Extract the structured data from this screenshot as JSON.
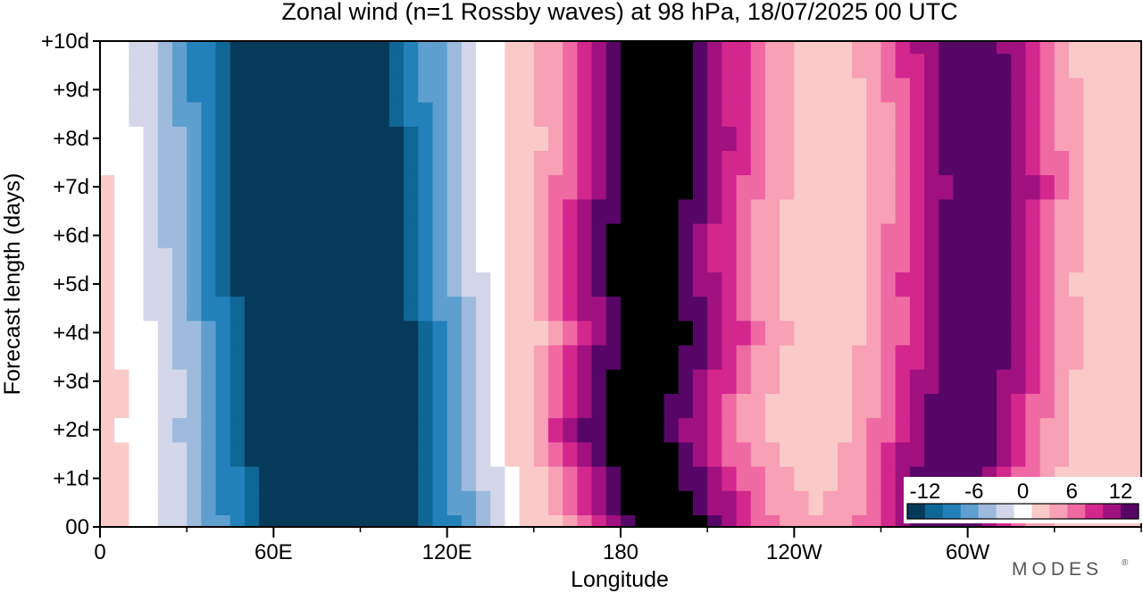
{
  "chart_data": {
    "type": "heatmap",
    "title": "Zonal wind (n=1 Rossby waves) at 98 hPa,  18/07/2025  00 UTC",
    "xlabel": "Longitude",
    "ylabel": "Forecast length (days)",
    "x_ticks": [
      {
        "lon": 0,
        "label": "0"
      },
      {
        "lon": 60,
        "label": "60E"
      },
      {
        "lon": 120,
        "label": "120E"
      },
      {
        "lon": 180,
        "label": "180"
      },
      {
        "lon": 240,
        "label": "120W"
      },
      {
        "lon": 300,
        "label": "60W"
      }
    ],
    "x_minor_step": 30,
    "xlim": [
      0,
      360
    ],
    "y_ticks": [
      {
        "day": 0,
        "label": "00"
      },
      {
        "day": 1,
        "label": "+1d"
      },
      {
        "day": 2,
        "label": "+2d"
      },
      {
        "day": 3,
        "label": "+3d"
      },
      {
        "day": 4,
        "label": "+4d"
      },
      {
        "day": 5,
        "label": "+5d"
      },
      {
        "day": 6,
        "label": "+6d"
      },
      {
        "day": 7,
        "label": "+7d"
      },
      {
        "day": 8,
        "label": "+8d"
      },
      {
        "day": 9,
        "label": "+9d"
      },
      {
        "day": 10,
        "label": "+10d"
      }
    ],
    "ylim": [
      0,
      10
    ],
    "grid": false,
    "colorbar": {
      "placement": "bottom-right",
      "labels": [
        "-12",
        "-6",
        "0",
        "6",
        "12"
      ],
      "levels": [
        -14,
        -12,
        -10,
        -8,
        -6,
        -4,
        -2,
        2,
        4,
        6,
        8,
        10,
        12,
        14
      ],
      "colors": [
        "#063a5a",
        "#0f6796",
        "#2381ba",
        "#5e9fcf",
        "#9dbadd",
        "#d3d6e8",
        "#ffffff",
        "#facac8",
        "#f8a0b5",
        "#ef69a3",
        "#d3278e",
        "#a0117f",
        "#570667"
      ]
    },
    "times_days": [
      0,
      0.5,
      1,
      1.5,
      2,
      2.5,
      3,
      3.5,
      4,
      4.5,
      5,
      5.5,
      6,
      6.5,
      7,
      7.5,
      8,
      8.5,
      9,
      9.5,
      10
    ],
    "features": [
      {
        "name": "easterly_core",
        "sign": -1,
        "amp": 20,
        "lon_sigma": 34,
        "time_lon": [
          [
            0,
            83
          ],
          [
            1,
            82
          ],
          [
            2,
            80
          ],
          [
            3,
            81
          ],
          [
            4,
            79
          ],
          [
            5,
            76
          ],
          [
            6,
            75
          ],
          [
            7,
            74
          ],
          [
            8,
            74
          ],
          [
            9,
            72
          ],
          [
            10,
            72
          ]
        ]
      },
      {
        "name": "westerly_dateline",
        "sign": 1,
        "amp": 13.5,
        "lon_sigma": 24,
        "time_lon": [
          [
            0,
            196
          ],
          [
            1,
            190
          ],
          [
            2,
            183
          ],
          [
            3,
            187
          ],
          [
            4,
            192
          ],
          [
            5,
            188
          ],
          [
            6,
            187
          ],
          [
            7,
            191
          ],
          [
            8,
            193
          ],
          [
            9,
            192
          ],
          [
            10,
            192
          ]
        ]
      },
      {
        "name": "westerly_60w",
        "sign": 1,
        "amp": 12,
        "lon_sigma": 20,
        "time_lon": [
          [
            0,
            292
          ],
          [
            1,
            294
          ],
          [
            2,
            297
          ],
          [
            3,
            300
          ],
          [
            4,
            302
          ],
          [
            5,
            301
          ],
          [
            6,
            302
          ],
          [
            7,
            305
          ],
          [
            8,
            303
          ],
          [
            9,
            302
          ],
          [
            10,
            300
          ]
        ]
      }
    ]
  },
  "watermark": "MODES"
}
